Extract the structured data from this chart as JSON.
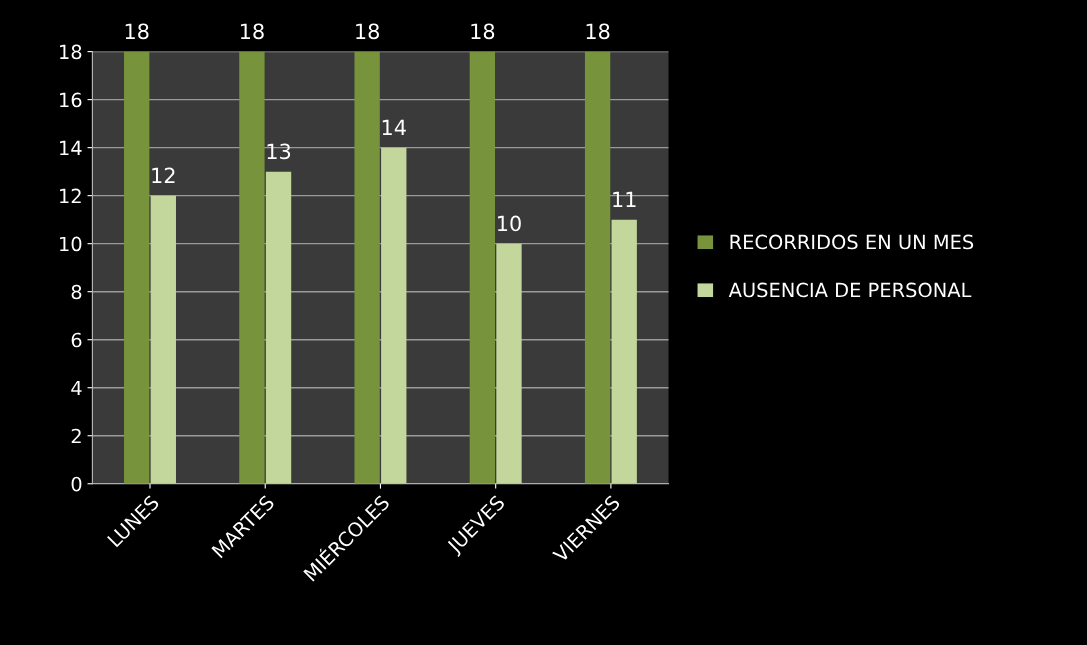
{
  "chart_data": {
    "type": "bar",
    "categories": [
      "LUNES",
      "MARTES",
      "MIÉRCOLES",
      "JUEVES",
      "VIERNES"
    ],
    "series": [
      {
        "name": "RECORRIDOS EN UN MES",
        "color": "#77933c",
        "values": [
          18,
          18,
          18,
          18,
          18
        ]
      },
      {
        "name": "AUSENCIA DE PERSONAL",
        "color": "#c3d69b",
        "values": [
          12,
          13,
          14,
          10,
          11
        ]
      }
    ],
    "ylim": [
      0,
      18
    ],
    "yticks": [
      0,
      2,
      4,
      6,
      8,
      10,
      12,
      14,
      16,
      18
    ],
    "grid": "y",
    "legend": "right",
    "data_labels": true
  }
}
